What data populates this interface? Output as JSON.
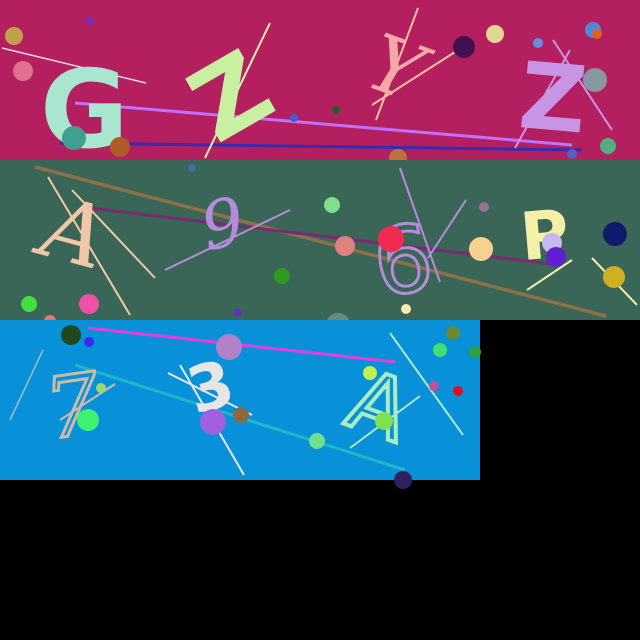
{
  "background": "#000000",
  "bands": [
    {
      "name": "band-top",
      "fill": "#b4205f",
      "glyphs": [
        {
          "char": "G",
          "color": "#a8e6d0",
          "style": "sans"
        },
        {
          "char": "Z",
          "color": "#c8f0a0",
          "style": "sans"
        },
        {
          "char": "Y",
          "color": "#f4a8a8",
          "style": "serif"
        },
        {
          "char": "Z",
          "color": "#c894e6",
          "style": "sans"
        }
      ]
    },
    {
      "name": "band-middle",
      "fill": "#3a6657",
      "glyphs": [
        {
          "char": "A",
          "color": "#f0c8a8",
          "style": "serif"
        },
        {
          "char": "9",
          "color": "#b48cdc",
          "style": "serif"
        },
        {
          "char": "6",
          "color": "#b48cdc",
          "style": "sans"
        },
        {
          "char": "P",
          "color": "#f4f0a8",
          "style": "sans"
        }
      ]
    },
    {
      "name": "band-bottom",
      "fill": "#0890d8",
      "glyphs": [
        {
          "char": "7",
          "color": "#c8bca8",
          "style": "serif"
        },
        {
          "char": "3",
          "color": "#e6e6e6",
          "style": "sans"
        },
        {
          "char": "A",
          "color": "#a8ecc0",
          "style": "sans"
        }
      ]
    }
  ]
}
